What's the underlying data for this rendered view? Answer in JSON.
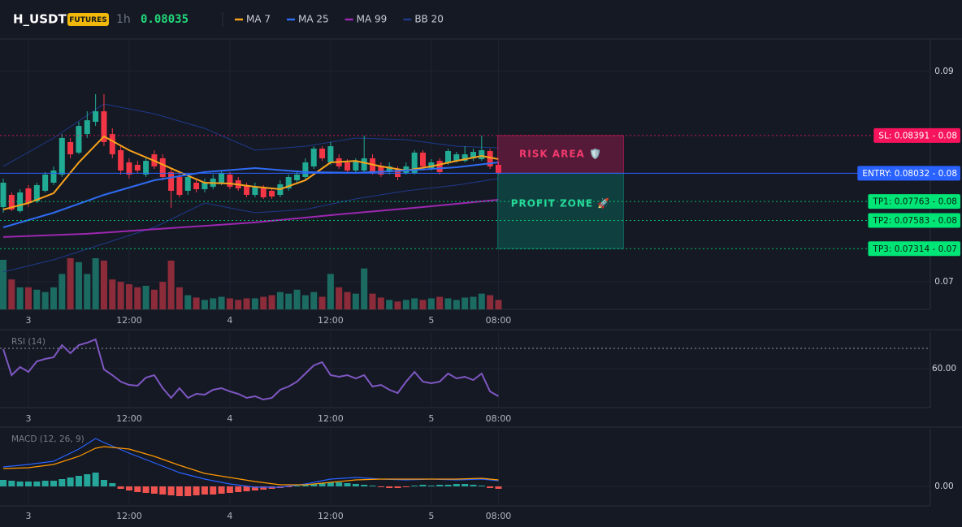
{
  "header": {
    "symbol": "H_USDT",
    "badge": "FUTURES",
    "interval": "1h",
    "price": "0.08035"
  },
  "chart_data": [
    {
      "type": "candlestick",
      "categories": [
        null,
        null,
        null,
        "3",
        null,
        null,
        null,
        null,
        null,
        null,
        null,
        null,
        null,
        null,
        null,
        "12:00",
        null,
        null,
        null,
        null,
        null,
        null,
        null,
        null,
        null,
        null,
        null,
        "4",
        null,
        null,
        null,
        null,
        null,
        null,
        null,
        null,
        null,
        null,
        null,
        "12:00",
        null,
        null,
        null,
        null,
        null,
        null,
        null,
        null,
        null,
        null,
        null,
        "5",
        null,
        null,
        null,
        null,
        null,
        null,
        null,
        "08:00"
      ],
      "open": [
        0.0771,
        0.07826,
        0.07672,
        0.07888,
        0.07764,
        0.07865,
        0.07942,
        0.08019,
        0.08328,
        0.08228,
        0.08405,
        0.08521,
        0.08621,
        0.08405,
        0.08251,
        0.08135,
        0.08112,
        0.08019,
        0.08212,
        0.08174,
        0.08043,
        0.07996,
        0.07865,
        0.07942,
        0.0788,
        0.07903,
        0.07942,
        0.08019,
        0.07965,
        0.07919,
        0.07826,
        0.07888,
        0.07865,
        0.07826,
        0.07888,
        0.07965,
        0.07996,
        0.08097,
        0.08266,
        0.08135,
        0.08174,
        0.08135,
        0.08058,
        0.08058,
        0.08174,
        0.08097,
        0.08043,
        0.08073,
        0.08035,
        0.08035,
        0.08228,
        0.08081,
        0.0815,
        0.08135,
        0.0815,
        0.0815,
        0.08174,
        0.08166,
        0.08243,
        0.08112
      ],
      "high": [
        0.07981,
        0.07849,
        0.0788,
        0.07919,
        0.07942,
        0.08043,
        0.08097,
        0.08405,
        0.08367,
        0.08521,
        0.08621,
        0.08784,
        0.08784,
        0.08459,
        0.08289,
        0.08174,
        0.0815,
        0.08174,
        0.08251,
        0.08212,
        0.08081,
        0.08035,
        0.08035,
        0.07981,
        0.07981,
        0.08019,
        0.08058,
        0.08043,
        0.07996,
        0.07942,
        0.07942,
        0.07919,
        0.07888,
        0.07965,
        0.08019,
        0.08058,
        0.08174,
        0.08289,
        0.08289,
        0.08328,
        0.08212,
        0.08166,
        0.08174,
        0.0839,
        0.08212,
        0.08135,
        0.08135,
        0.08097,
        0.08135,
        0.08251,
        0.08251,
        0.08166,
        0.08174,
        0.08266,
        0.08235,
        0.08289,
        0.08266,
        0.0839,
        0.08266,
        0.0815
      ],
      "low": [
        0.07656,
        0.07672,
        0.07656,
        0.0771,
        0.07749,
        0.07849,
        0.07919,
        0.07996,
        0.08174,
        0.08212,
        0.08367,
        0.08482,
        0.08289,
        0.08174,
        0.08019,
        0.07981,
        0.08035,
        0.07996,
        0.08073,
        0.07965,
        0.07703,
        0.07803,
        0.07826,
        0.07849,
        0.07849,
        0.0788,
        0.07919,
        0.0788,
        0.07865,
        0.07803,
        0.07803,
        0.07788,
        0.07788,
        0.07803,
        0.07865,
        0.07942,
        0.07965,
        0.08073,
        0.0815,
        0.08112,
        0.08073,
        0.08035,
        0.08035,
        0.08035,
        0.08019,
        0.07996,
        0.08019,
        0.07965,
        0.08019,
        0.08019,
        0.08073,
        0.08058,
        0.08019,
        0.08112,
        0.08135,
        0.08135,
        0.0815,
        0.0815,
        0.08073,
        0.08019
      ],
      "close": [
        0.07942,
        0.07687,
        0.07849,
        0.07749,
        0.07919,
        0.08019,
        0.08058,
        0.08367,
        0.08212,
        0.08482,
        0.08536,
        0.08621,
        0.08328,
        0.08212,
        0.08058,
        0.08019,
        0.08058,
        0.0815,
        0.08097,
        0.07996,
        0.07865,
        0.07826,
        0.07996,
        0.0788,
        0.07942,
        0.07981,
        0.08035,
        0.07903,
        0.07888,
        0.07826,
        0.07903,
        0.07803,
        0.07811,
        0.07927,
        0.07996,
        0.08019,
        0.08135,
        0.08266,
        0.08174,
        0.08289,
        0.08097,
        0.08058,
        0.0815,
        0.08174,
        0.08035,
        0.08019,
        0.08097,
        0.07996,
        0.08097,
        0.08228,
        0.08097,
        0.08135,
        0.08043,
        0.08243,
        0.08212,
        0.08212,
        0.08235,
        0.08251,
        0.08097,
        0.08035
      ],
      "up_color": "#22ab94",
      "down_color": "#f23645",
      "ylim": [
        0.06737,
        0.09309
      ],
      "yticks": [
        0.07,
        0.09
      ],
      "grid": true,
      "overlays": [
        {
          "name": "MA 7",
          "color": "#f7a21b",
          "x": [
            0,
            3,
            6,
            9,
            12,
            15,
            18,
            21,
            24,
            27,
            30,
            33,
            36,
            39,
            42,
            45,
            48,
            51,
            54,
            57,
            59
          ],
          "values": [
            0.07687,
            0.07749,
            0.07842,
            0.08135,
            0.08382,
            0.08251,
            0.0815,
            0.08043,
            0.07942,
            0.07934,
            0.07903,
            0.0788,
            0.07965,
            0.08135,
            0.0815,
            0.08097,
            0.08058,
            0.08097,
            0.0815,
            0.08197,
            0.08166
          ]
        },
        {
          "name": "MA 25",
          "color": "#2f6bf0",
          "x": [
            0,
            6,
            12,
            18,
            24,
            30,
            36,
            42,
            48,
            54,
            59
          ],
          "values": [
            0.07517,
            0.07656,
            0.07826,
            0.07965,
            0.08043,
            0.08081,
            0.08043,
            0.08035,
            0.08058,
            0.08089,
            0.08135
          ]
        },
        {
          "name": "MA 99",
          "color": "#9c27b0",
          "x": [
            0,
            10,
            20,
            30,
            40,
            50,
            59
          ],
          "values": [
            0.07425,
            0.07456,
            0.0751,
            0.07564,
            0.07641,
            0.0771,
            0.0778
          ]
        },
        {
          "name": "BB 20",
          "color": "#1e3a8a",
          "x": [
            0,
            6,
            12,
            18,
            24,
            30,
            36,
            42,
            48,
            54,
            59
          ],
          "upper": [
            0.08097,
            0.08367,
            0.08691,
            0.08598,
            0.08459,
            0.08251,
            0.08289,
            0.08367,
            0.08351,
            0.08289,
            0.08274
          ],
          "lower": [
            0.07093,
            0.07209,
            0.07363,
            0.07517,
            0.07749,
            0.07656,
            0.07687,
            0.07788,
            0.07865,
            0.07919,
            0.07981
          ]
        }
      ],
      "volume": {
        "values": [
          63,
          38,
          28,
          28,
          25,
          22,
          28,
          45,
          65,
          60,
          45,
          65,
          62,
          38,
          35,
          32,
          28,
          30,
          25,
          35,
          62,
          28,
          18,
          15,
          12,
          14,
          16,
          14,
          12,
          14,
          14,
          16,
          18,
          22,
          20,
          25,
          18,
          22,
          16,
          45,
          28,
          22,
          20,
          52,
          20,
          15,
          12,
          10,
          12,
          14,
          12,
          14,
          16,
          14,
          12,
          15,
          16,
          20,
          18,
          12
        ],
        "up_color": "#1b6b62",
        "down_color": "#8c2c3a"
      },
      "levels": [
        {
          "label": "SL: 0.08391 - 0.08",
          "value": 0.08391,
          "color": "#f7145c",
          "text_color": "#ffffff",
          "style": "dotted"
        },
        {
          "label": "ENTRY: 0.08032 - 0.08",
          "value": 0.08032,
          "color": "#2962ff",
          "text_color": "#ffffff",
          "style": "solid"
        },
        {
          "label": "TP1: 0.07763 - 0.08",
          "value": 0.07763,
          "color": "#00e676",
          "text_color": "#0b1f12",
          "style": "dotted"
        },
        {
          "label": "TP2: 0.07583 - 0.08",
          "value": 0.07583,
          "color": "#00e676",
          "text_color": "#0b1f12",
          "style": "dotted"
        },
        {
          "label": "TP3: 0.07314 - 0.07",
          "value": 0.07314,
          "color": "#00e676",
          "text_color": "#0b1f12",
          "style": "dotted"
        }
      ],
      "risk_zone": {
        "label": "RISK AREA 🛡️",
        "color": "#e91e63",
        "text_color": "#f23a6e"
      },
      "profit_zone": {
        "label": "PROFIT ZONE 🚀",
        "color": "#089981",
        "text_color": "#28d99a"
      }
    },
    {
      "type": "line",
      "title": "RSI (14)",
      "categories": [
        null,
        null,
        null,
        "3",
        null,
        null,
        null,
        null,
        null,
        null,
        null,
        null,
        null,
        null,
        null,
        "12:00",
        null,
        null,
        null,
        null,
        null,
        null,
        null,
        null,
        null,
        null,
        null,
        "4",
        null,
        null,
        null,
        null,
        null,
        null,
        null,
        null,
        null,
        null,
        null,
        "12:00",
        null,
        null,
        null,
        null,
        null,
        null,
        null,
        null,
        null,
        null,
        null,
        "5",
        null,
        null,
        null,
        null,
        null,
        null,
        null,
        "08:00"
      ],
      "values": [
        69.6,
        56.8,
        60.8,
        58.4,
        63.6,
        64.8,
        65.6,
        71.6,
        67.6,
        71.6,
        72.8,
        74.4,
        59.6,
        56.8,
        53.6,
        52.0,
        51.6,
        55.6,
        56.8,
        50.4,
        45.6,
        50.4,
        45.6,
        47.6,
        47.2,
        49.6,
        50.4,
        48.8,
        47.6,
        45.6,
        46.4,
        44.8,
        45.6,
        49.6,
        51.2,
        53.6,
        57.6,
        61.6,
        63.2,
        56.8,
        56.0,
        56.8,
        55.2,
        56.8,
        51.2,
        52.0,
        49.6,
        48.0,
        53.6,
        58.4,
        53.6,
        52.8,
        53.6,
        57.6,
        55.2,
        56.0,
        54.4,
        57.6,
        48.8,
        46.4
      ],
      "color": "#7e57c2",
      "ylim": [
        40.8,
        78.4
      ],
      "yticks": [
        {
          "value": 60,
          "label": "60.00"
        }
      ],
      "overbought": 70,
      "grid": true
    },
    {
      "type": "macd",
      "title": "MACD (12, 26, 9)",
      "categories": [
        null,
        null,
        null,
        "3",
        null,
        null,
        null,
        null,
        null,
        null,
        null,
        null,
        null,
        null,
        null,
        "12:00",
        null,
        null,
        null,
        null,
        null,
        null,
        null,
        null,
        null,
        null,
        null,
        "4",
        null,
        null,
        null,
        null,
        null,
        null,
        null,
        null,
        null,
        null,
        null,
        "12:00",
        null,
        null,
        null,
        null,
        null,
        null,
        null,
        null,
        null,
        null,
        null,
        "5",
        null,
        null,
        null,
        null,
        null,
        null,
        null,
        "08:00"
      ],
      "histogram": [
        8e-05,
        7e-05,
        6e-05,
        6e-05,
        6e-05,
        7e-05,
        7e-05,
        9e-05,
        0.00011,
        0.00013,
        0.00015,
        0.00017,
        8e-05,
        4e-05,
        -3e-05,
        -5e-05,
        -7e-05,
        -8e-05,
        -9e-05,
        -0.0001,
        -0.00011,
        -0.00012,
        -0.00012,
        -0.00011,
        -0.0001,
        -0.0001,
        -9e-05,
        -8e-05,
        -7e-05,
        -6e-05,
        -5e-05,
        -4e-05,
        -3e-05,
        -2e-05,
        -1e-05,
        1e-05,
        2e-05,
        3e-05,
        4e-05,
        5e-05,
        5e-05,
        4e-05,
        3e-05,
        2e-05,
        1e-05,
        -1e-05,
        -2e-05,
        -2e-05,
        -1e-05,
        1e-05,
        2e-05,
        1e-05,
        2e-05,
        2e-05,
        3e-05,
        3e-05,
        2e-05,
        1e-05,
        -2e-05,
        -3e-05
      ],
      "pos_color": "#26a69a",
      "neg_color": "#ef5350",
      "series": [
        {
          "color": "#2962ff",
          "x": [
            0,
            3,
            6,
            9,
            11,
            12,
            15,
            18,
            21,
            24,
            27,
            30,
            33,
            36,
            39,
            42,
            45,
            48,
            51,
            54,
            57,
            59
          ],
          "values": [
            0.00024,
            0.00027,
            0.00031,
            0.00046,
            0.00059,
            0.00054,
            0.00041,
            0.00029,
            0.00017,
            9e-05,
            3e-05,
            -1e-05,
            -1e-05,
            3e-05,
            9e-05,
            0.00011,
            9e-05,
            8e-05,
            9e-05,
            8e-05,
            9e-05,
            7e-05
          ]
        },
        {
          "color": "#ff9800",
          "x": [
            0,
            3,
            6,
            9,
            11,
            12,
            15,
            18,
            21,
            24,
            27,
            30,
            33,
            36,
            39,
            42,
            45,
            48,
            51,
            54,
            57,
            59
          ],
          "values": [
            0.00022,
            0.00023,
            0.00027,
            0.00037,
            0.00047,
            0.00049,
            0.00046,
            0.00037,
            0.00026,
            0.00016,
            0.00011,
            6e-05,
            2e-05,
            2e-05,
            5e-05,
            8e-05,
            9e-05,
            9e-05,
            9e-05,
            9e-05,
            0.0001,
            8e-05
          ]
        }
      ],
      "ylim": [
        -0.00024,
        0.00071
      ],
      "yticks": [
        {
          "value": 0,
          "label": "0.00"
        }
      ],
      "grid": true
    }
  ]
}
